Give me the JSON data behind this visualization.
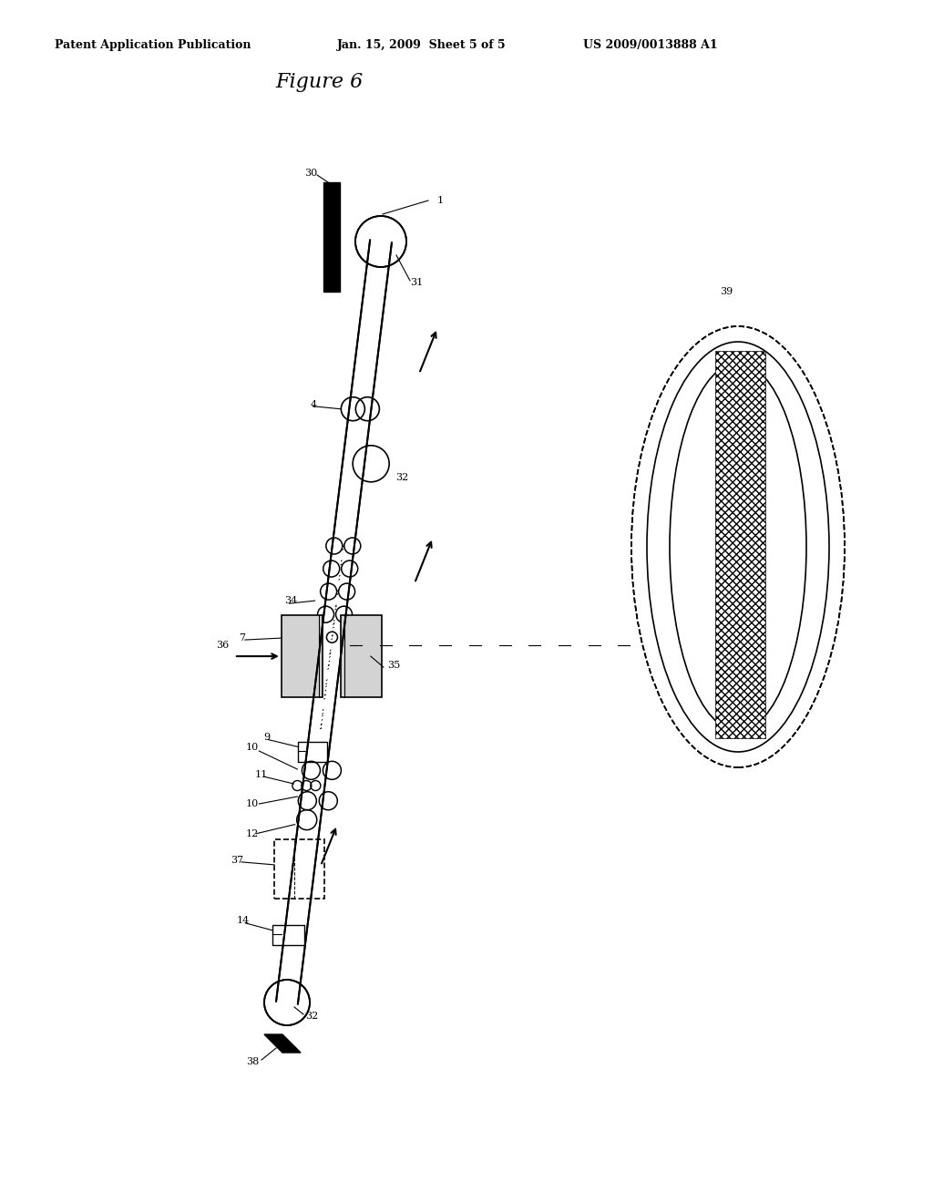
{
  "title": "Figure 6",
  "header_left": "Patent Application Publication",
  "header_center": "Jan. 15, 2009  Sheet 5 of 5",
  "header_right": "US 2009/0013888 A1",
  "bg_color": "#ffffff",
  "line_color": "#000000"
}
